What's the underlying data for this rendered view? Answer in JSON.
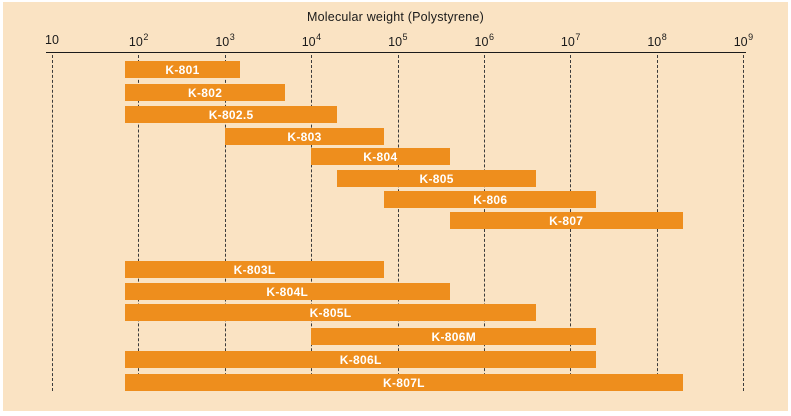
{
  "title": "Molecular weight (Polystyrene)",
  "colors": {
    "background": "#fae3c3",
    "bar": "#ee8e1d",
    "ink": "#1a1a1a",
    "gridline": "#3b3b3b",
    "bar_label": "#ffffff"
  },
  "chart_data": {
    "type": "bar",
    "orientation": "horizontal-range",
    "title": "Molecular weight (Polystyrene)",
    "xlabel": "Molecular weight (Polystyrene)",
    "ylabel": "",
    "x_scale": "log10",
    "xlim": [
      10,
      1000000000
    ],
    "grid": "vertical-dashed",
    "legend": "none",
    "x_ticks": [
      {
        "text": "10",
        "sup": ""
      },
      {
        "text": "10",
        "sup": "2"
      },
      {
        "text": "10",
        "sup": "3"
      },
      {
        "text": "10",
        "sup": "4"
      },
      {
        "text": "10",
        "sup": "5"
      },
      {
        "text": "10",
        "sup": "6"
      },
      {
        "text": "10",
        "sup": "7"
      },
      {
        "text": "10",
        "sup": "8"
      },
      {
        "text": "10",
        "sup": "9"
      }
    ],
    "bars": [
      {
        "label": "K-801",
        "group": 1,
        "min": 70,
        "max": 1500
      },
      {
        "label": "K-802",
        "group": 1,
        "min": 70,
        "max": 5000
      },
      {
        "label": "K-802.5",
        "group": 1,
        "min": 70,
        "max": 20000
      },
      {
        "label": "K-803",
        "group": 1,
        "min": 1000,
        "max": 70000
      },
      {
        "label": "K-804",
        "group": 1,
        "min": 10000,
        "max": 400000
      },
      {
        "label": "K-805",
        "group": 1,
        "min": 20000,
        "max": 4000000
      },
      {
        "label": "K-806",
        "group": 1,
        "min": 70000,
        "max": 20000000
      },
      {
        "label": "K-807",
        "group": 1,
        "min": 400000,
        "max": 200000000
      },
      {
        "label": "K-803L",
        "group": 2,
        "min": 70,
        "max": 70000
      },
      {
        "label": "K-804L",
        "group": 2,
        "min": 70,
        "max": 400000
      },
      {
        "label": "K-805L",
        "group": 2,
        "min": 70,
        "max": 4000000
      },
      {
        "label": "K-806M",
        "group": 2,
        "min": 10000,
        "max": 20000000
      },
      {
        "label": "K-806L",
        "group": 2,
        "min": 70,
        "max": 20000000
      },
      {
        "label": "K-807L",
        "group": 2,
        "min": 70,
        "max": 200000000
      }
    ]
  }
}
